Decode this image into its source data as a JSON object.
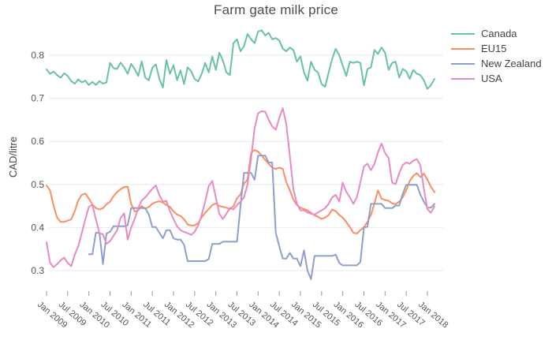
{
  "title": "Farm gate milk price",
  "y_axis": {
    "label": "CAD/litre",
    "ticks": [
      0.3,
      0.4,
      0.5,
      0.6,
      0.7,
      0.8
    ],
    "range": [
      0.253,
      0.876
    ]
  },
  "x_axis": {
    "tick_interval_months": 6,
    "tick_labels": [
      "Jan 2009",
      "Jul 2009",
      "Jan 2010",
      "Jul 2010",
      "Jan 2011",
      "Jul 2011",
      "Jan 2012",
      "Jul 2012",
      "Jan 2013",
      "Jul 2013",
      "Jan 2014",
      "Jul 2014",
      "Jan 2015",
      "Jul 2015",
      "Jan 2016",
      "Jul 2016",
      "Jan 2017",
      "Jul 2017",
      "Jan 2018"
    ]
  },
  "legend": {
    "items": [
      {
        "label": "Canada",
        "color": "#66c2a5"
      },
      {
        "label": "EU15",
        "color": "#fc8d62"
      },
      {
        "label": "New Zealand",
        "color": "#8da0cb"
      },
      {
        "label": "USA",
        "color": "#e78ac3"
      }
    ]
  },
  "chart_data": {
    "type": "line",
    "title": "Farm gate milk price",
    "xlabel": "",
    "ylabel": "CAD/litre",
    "ylim": [
      0.253,
      0.876
    ],
    "grid": "horizontal",
    "legend_position": "right",
    "x": [
      "2009-01",
      "2009-02",
      "2009-03",
      "2009-04",
      "2009-05",
      "2009-06",
      "2009-07",
      "2009-08",
      "2009-09",
      "2009-10",
      "2009-11",
      "2009-12",
      "2010-01",
      "2010-02",
      "2010-03",
      "2010-04",
      "2010-05",
      "2010-06",
      "2010-07",
      "2010-08",
      "2010-09",
      "2010-10",
      "2010-11",
      "2010-12",
      "2011-01",
      "2011-02",
      "2011-03",
      "2011-04",
      "2011-05",
      "2011-06",
      "2011-07",
      "2011-08",
      "2011-09",
      "2011-10",
      "2011-11",
      "2011-12",
      "2012-01",
      "2012-02",
      "2012-03",
      "2012-04",
      "2012-05",
      "2012-06",
      "2012-07",
      "2012-08",
      "2012-09",
      "2012-10",
      "2012-11",
      "2012-12",
      "2013-01",
      "2013-02",
      "2013-03",
      "2013-04",
      "2013-05",
      "2013-06",
      "2013-07",
      "2013-08",
      "2013-09",
      "2013-10",
      "2013-11",
      "2013-12",
      "2014-01",
      "2014-02",
      "2014-03",
      "2014-04",
      "2014-05",
      "2014-06",
      "2014-07",
      "2014-08",
      "2014-09",
      "2014-10",
      "2014-11",
      "2014-12",
      "2015-01",
      "2015-02",
      "2015-03",
      "2015-04",
      "2015-05",
      "2015-06",
      "2015-07",
      "2015-08",
      "2015-09",
      "2015-10",
      "2015-11",
      "2015-12",
      "2016-01",
      "2016-02",
      "2016-03",
      "2016-04",
      "2016-05",
      "2016-06",
      "2016-07",
      "2016-08",
      "2016-09",
      "2016-10",
      "2016-11",
      "2016-12",
      "2017-01",
      "2017-02",
      "2017-03",
      "2017-04",
      "2017-05",
      "2017-06",
      "2017-07",
      "2017-08",
      "2017-09",
      "2017-10",
      "2017-11",
      "2017-12",
      "2018-01",
      "2018-02",
      "2018-03"
    ],
    "series": [
      {
        "name": "Canada",
        "color": "#66c2a5",
        "values": [
          0.767,
          0.757,
          0.762,
          0.754,
          0.748,
          0.758,
          0.752,
          0.74,
          0.734,
          0.744,
          0.737,
          0.741,
          0.731,
          0.738,
          0.731,
          0.74,
          0.734,
          0.737,
          0.782,
          0.77,
          0.768,
          0.783,
          0.772,
          0.757,
          0.78,
          0.768,
          0.752,
          0.786,
          0.748,
          0.742,
          0.771,
          0.779,
          0.745,
          0.725,
          0.789,
          0.757,
          0.777,
          0.742,
          0.765,
          0.733,
          0.772,
          0.763,
          0.745,
          0.739,
          0.757,
          0.782,
          0.76,
          0.797,
          0.766,
          0.806,
          0.788,
          0.76,
          0.754,
          0.828,
          0.837,
          0.809,
          0.821,
          0.849,
          0.837,
          0.828,
          0.855,
          0.858,
          0.846,
          0.852,
          0.837,
          0.84,
          0.834,
          0.815,
          0.809,
          0.818,
          0.812,
          0.785,
          0.797,
          0.76,
          0.741,
          0.785,
          0.766,
          0.76,
          0.733,
          0.727,
          0.76,
          0.791,
          0.815,
          0.8,
          0.776,
          0.752,
          0.785,
          0.782,
          0.785,
          0.782,
          0.73,
          0.768,
          0.772,
          0.812,
          0.803,
          0.818,
          0.806,
          0.766,
          0.782,
          0.785,
          0.748,
          0.768,
          0.763,
          0.745,
          0.766,
          0.757,
          0.754,
          0.742,
          0.722,
          0.73,
          0.745
        ]
      },
      {
        "name": "EU15",
        "color": "#fc8d62",
        "values": [
          0.498,
          0.486,
          0.451,
          0.423,
          0.413,
          0.413,
          0.416,
          0.419,
          0.438,
          0.463,
          0.476,
          0.479,
          0.467,
          0.454,
          0.445,
          0.442,
          0.445,
          0.454,
          0.46,
          0.473,
          0.482,
          0.489,
          0.494,
          0.495,
          0.455,
          0.437,
          0.44,
          0.45,
          0.443,
          0.448,
          0.455,
          0.459,
          0.461,
          0.458,
          0.452,
          0.448,
          0.438,
          0.43,
          0.427,
          0.419,
          0.407,
          0.405,
          0.405,
          0.41,
          0.424,
          0.434,
          0.443,
          0.452,
          0.456,
          0.45,
          0.448,
          0.446,
          0.443,
          0.449,
          0.468,
          0.477,
          0.502,
          0.511,
          0.573,
          0.58,
          0.576,
          0.567,
          0.557,
          0.548,
          0.539,
          0.536,
          0.539,
          0.536,
          0.505,
          0.486,
          0.465,
          0.452,
          0.446,
          0.443,
          0.44,
          0.434,
          0.428,
          0.425,
          0.42,
          0.423,
          0.429,
          0.442,
          0.438,
          0.429,
          0.423,
          0.413,
          0.401,
          0.388,
          0.386,
          0.394,
          0.401,
          0.413,
          0.429,
          0.457,
          0.486,
          0.467,
          0.464,
          0.462,
          0.456,
          0.454,
          0.46,
          0.47,
          0.486,
          0.508,
          0.52,
          0.526,
          0.517,
          0.525,
          0.511,
          0.495,
          0.482
        ]
      },
      {
        "name": "New Zealand",
        "color": "#8da0cb",
        "values": [
          null,
          null,
          null,
          null,
          null,
          null,
          null,
          null,
          null,
          null,
          null,
          null,
          0.338,
          0.338,
          0.388,
          0.388,
          0.315,
          0.386,
          0.39,
          0.403,
          0.403,
          0.403,
          0.403,
          0.405,
          0.445,
          0.445,
          0.445,
          0.445,
          0.445,
          0.43,
          0.401,
          0.401,
          0.388,
          0.375,
          0.394,
          0.394,
          0.375,
          0.372,
          0.372,
          0.36,
          0.322,
          0.322,
          0.322,
          0.322,
          0.322,
          0.322,
          0.327,
          0.362,
          0.362,
          0.362,
          0.367,
          0.367,
          0.367,
          0.367,
          0.367,
          0.45,
          0.527,
          0.527,
          0.527,
          0.511,
          0.567,
          0.567,
          0.567,
          0.551,
          0.551,
          0.388,
          0.356,
          0.328,
          0.328,
          0.341,
          0.328,
          0.328,
          0.31,
          0.347,
          0.3,
          0.28,
          0.334,
          0.334,
          0.334,
          0.334,
          0.334,
          0.334,
          0.337,
          0.318,
          0.312,
          0.312,
          0.312,
          0.312,
          0.312,
          0.32,
          0.4,
          0.402,
          0.455,
          0.455,
          0.455,
          0.455,
          0.445,
          0.445,
          0.445,
          0.451,
          0.451,
          0.478,
          0.499,
          0.499,
          0.499,
          0.499,
          0.477,
          0.46,
          0.446,
          0.446,
          0.455
        ]
      },
      {
        "name": "USA",
        "color": "#e78ac3",
        "values": [
          0.366,
          0.318,
          0.308,
          0.315,
          0.324,
          0.33,
          0.318,
          0.31,
          0.337,
          0.356,
          0.387,
          0.419,
          0.448,
          0.453,
          0.419,
          0.387,
          0.384,
          0.362,
          0.368,
          0.381,
          0.393,
          0.422,
          0.433,
          0.372,
          0.4,
          0.42,
          0.445,
          0.463,
          0.47,
          0.48,
          0.49,
          0.498,
          0.475,
          0.46,
          0.462,
          0.438,
          0.42,
          0.403,
          0.394,
          0.39,
          0.387,
          0.383,
          0.39,
          0.405,
          0.43,
          0.46,
          0.496,
          0.508,
          0.47,
          0.432,
          0.42,
          0.432,
          0.445,
          0.442,
          0.452,
          0.46,
          0.47,
          0.5,
          0.56,
          0.63,
          0.665,
          0.67,
          0.669,
          0.65,
          0.635,
          0.627,
          0.655,
          0.677,
          0.64,
          0.565,
          0.49,
          0.455,
          0.44,
          0.44,
          0.435,
          0.432,
          0.43,
          0.435,
          0.44,
          0.445,
          0.455,
          0.47,
          0.476,
          0.46,
          0.504,
          0.483,
          0.47,
          0.455,
          0.47,
          0.505,
          0.542,
          0.548,
          0.533,
          0.548,
          0.575,
          0.595,
          0.573,
          0.561,
          0.504,
          0.501,
          0.526,
          0.545,
          0.551,
          0.548,
          0.555,
          0.559,
          0.545,
          0.49,
          0.443,
          0.434,
          0.449
        ]
      }
    ]
  }
}
